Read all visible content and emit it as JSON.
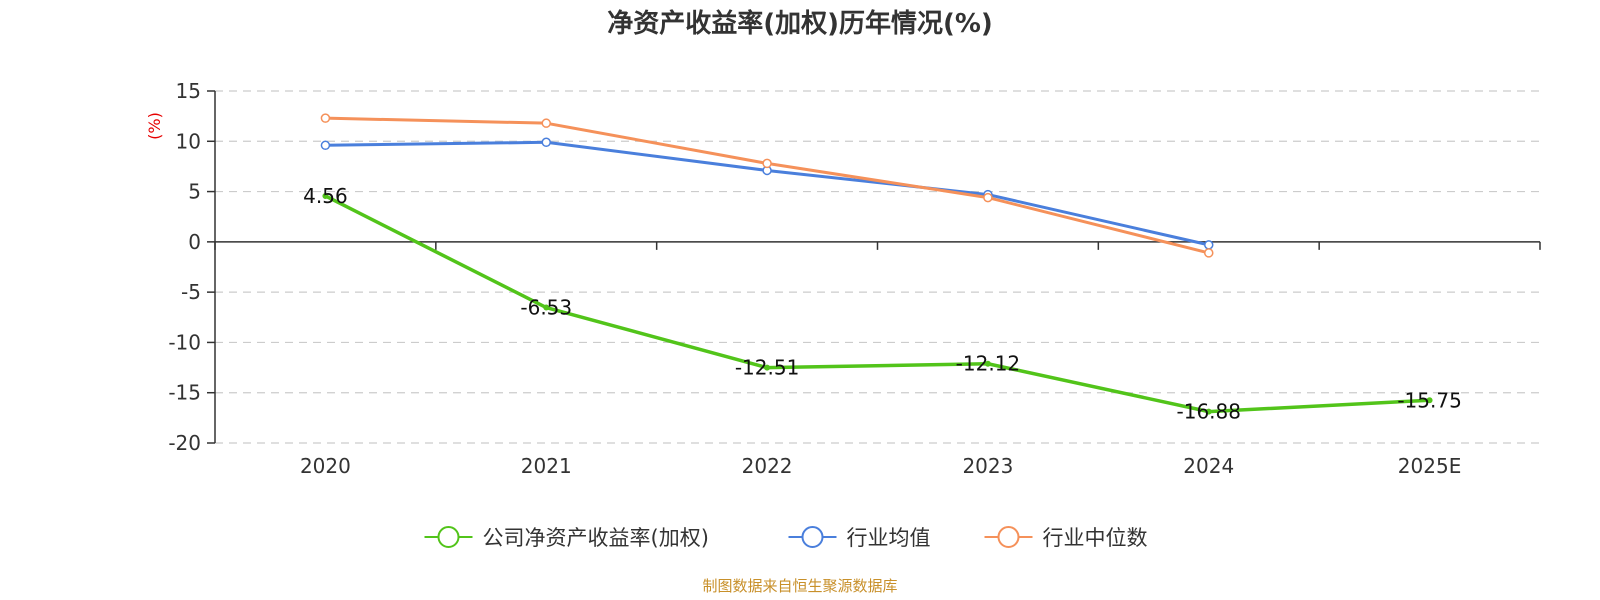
{
  "chart_data": {
    "type": "line",
    "title": "净资产收益率(加权)历年情况(%)",
    "ylabel": "(%)",
    "xlabel": "",
    "categories": [
      "2020",
      "2021",
      "2022",
      "2023",
      "2024",
      "2025E"
    ],
    "ylim": [
      -20,
      15
    ],
    "yticks": [
      15,
      10,
      5,
      0,
      -5,
      -10,
      -15,
      -20
    ],
    "grid": true,
    "legend_position": "bottom",
    "series": [
      {
        "name": "公司净资产收益率(加权)",
        "color": "#52c41a",
        "values": [
          4.56,
          -6.53,
          -12.51,
          -12.12,
          -16.88,
          -15.75
        ],
        "labels": [
          "4.56",
          "-6.53",
          "-12.51",
          "-12.12",
          "-16.88",
          "-15.75"
        ]
      },
      {
        "name": "行业均值",
        "color": "#4a7fdc",
        "values": [
          9.6,
          9.9,
          7.1,
          4.7,
          -0.3,
          null
        ]
      },
      {
        "name": "行业中位数",
        "color": "#f5915a",
        "values": [
          12.3,
          11.8,
          7.8,
          4.4,
          -1.1,
          null
        ]
      }
    ]
  },
  "source": "制图数据来自恒生聚源数据库"
}
